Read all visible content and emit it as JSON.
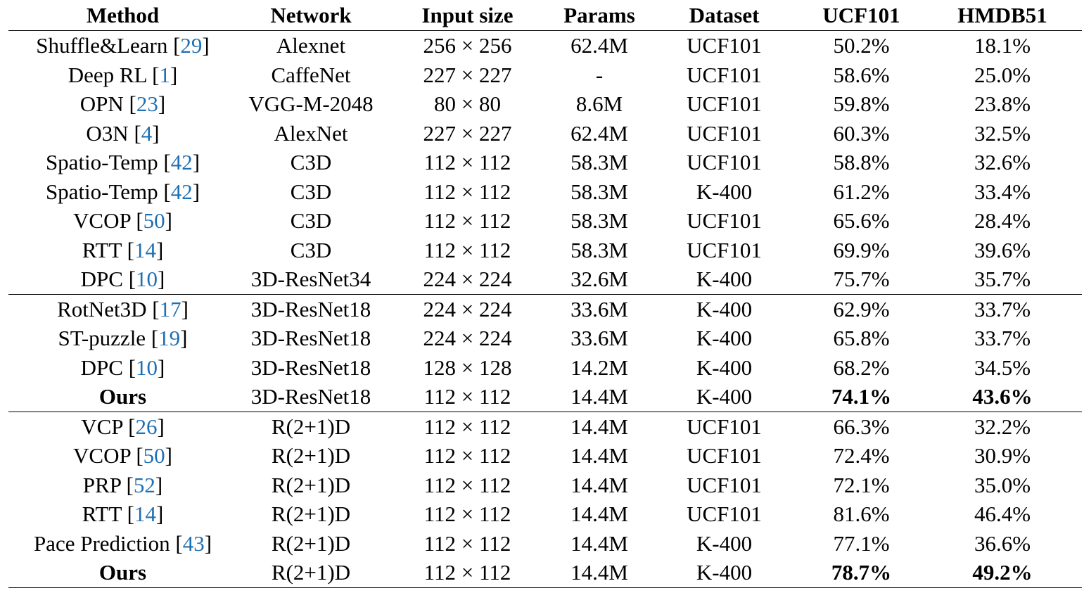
{
  "headers": [
    "Method",
    "Network",
    "Input size",
    "Params",
    "Dataset",
    "UCF101",
    "HMDB51"
  ],
  "groups": [
    [
      {
        "method": "Shuffle&Learn",
        "cite": "29",
        "network": "Alexnet",
        "input": "256 × 256",
        "params": "62.4M",
        "dataset": "UCF101",
        "ucf": "50.2%",
        "hmdb": "18.1%",
        "bold": false
      },
      {
        "method": "Deep RL",
        "cite": "1",
        "network": "CaffeNet",
        "input": "227 × 227",
        "params": "-",
        "dataset": "UCF101",
        "ucf": "58.6%",
        "hmdb": "25.0%",
        "bold": false
      },
      {
        "method": "OPN",
        "cite": "23",
        "network": "VGG-M-2048",
        "input": "80 × 80",
        "params": "8.6M",
        "dataset": "UCF101",
        "ucf": "59.8%",
        "hmdb": "23.8%",
        "bold": false
      },
      {
        "method": "O3N",
        "cite": "4",
        "network": "AlexNet",
        "input": "227 × 227",
        "params": "62.4M",
        "dataset": "UCF101",
        "ucf": "60.3%",
        "hmdb": "32.5%",
        "bold": false
      },
      {
        "method": "Spatio-Temp",
        "cite": "42",
        "network": "C3D",
        "input": "112 × 112",
        "params": "58.3M",
        "dataset": "UCF101",
        "ucf": "58.8%",
        "hmdb": "32.6%",
        "bold": false
      },
      {
        "method": "Spatio-Temp",
        "cite": "42",
        "network": "C3D",
        "input": "112 × 112",
        "params": "58.3M",
        "dataset": "K-400",
        "ucf": "61.2%",
        "hmdb": "33.4%",
        "bold": false
      },
      {
        "method": "VCOP",
        "cite": "50",
        "network": "C3D",
        "input": "112 × 112",
        "params": "58.3M",
        "dataset": "UCF101",
        "ucf": "65.6%",
        "hmdb": "28.4%",
        "bold": false
      },
      {
        "method": "RTT",
        "cite": "14",
        "network": "C3D",
        "input": "112 × 112",
        "params": "58.3M",
        "dataset": "UCF101",
        "ucf": "69.9%",
        "hmdb": "39.6%",
        "bold": false
      },
      {
        "method": "DPC",
        "cite": "10",
        "network": "3D-ResNet34",
        "input": "224 × 224",
        "params": "32.6M",
        "dataset": "K-400",
        "ucf": "75.7%",
        "hmdb": "35.7%",
        "bold": false
      }
    ],
    [
      {
        "method": "RotNet3D",
        "cite": "17",
        "network": "3D-ResNet18",
        "input": "224 × 224",
        "params": "33.6M",
        "dataset": "K-400",
        "ucf": "62.9%",
        "hmdb": "33.7%",
        "bold": false
      },
      {
        "method": "ST-puzzle",
        "cite": "19",
        "network": "3D-ResNet18",
        "input": "224 × 224",
        "params": "33.6M",
        "dataset": "K-400",
        "ucf": "65.8%",
        "hmdb": "33.7%",
        "bold": false
      },
      {
        "method": "DPC",
        "cite": "10",
        "network": "3D-ResNet18",
        "input": "128 × 128",
        "params": "14.2M",
        "dataset": "K-400",
        "ucf": "68.2%",
        "hmdb": "34.5%",
        "bold": false
      },
      {
        "method": "Ours",
        "cite": "",
        "network": "3D-ResNet18",
        "input": "112 × 112",
        "params": "14.4M",
        "dataset": "K-400",
        "ucf": "74.1%",
        "hmdb": "43.6%",
        "bold": true
      }
    ],
    [
      {
        "method": "VCP",
        "cite": "26",
        "network": "R(2+1)D",
        "input": "112 × 112",
        "params": "14.4M",
        "dataset": "UCF101",
        "ucf": "66.3%",
        "hmdb": "32.2%",
        "bold": false
      },
      {
        "method": "VCOP",
        "cite": "50",
        "network": "R(2+1)D",
        "input": "112 × 112",
        "params": "14.4M",
        "dataset": "UCF101",
        "ucf": "72.4%",
        "hmdb": "30.9%",
        "bold": false
      },
      {
        "method": "PRP",
        "cite": "52",
        "network": "R(2+1)D",
        "input": "112 × 112",
        "params": "14.4M",
        "dataset": "UCF101",
        "ucf": "72.1%",
        "hmdb": "35.0%",
        "bold": false
      },
      {
        "method": "RTT",
        "cite": "14",
        "network": "R(2+1)D",
        "input": "112 × 112",
        "params": "14.4M",
        "dataset": "UCF101",
        "ucf": "81.6%",
        "hmdb": "46.4%",
        "bold": false
      },
      {
        "method": "Pace Prediction",
        "cite": "43",
        "network": "R(2+1)D",
        "input": "112 × 112",
        "params": "14.4M",
        "dataset": "K-400",
        "ucf": "77.1%",
        "hmdb": "36.6%",
        "bold": false
      },
      {
        "method": "Ours",
        "cite": "",
        "network": "R(2+1)D",
        "input": "112 × 112",
        "params": "14.4M",
        "dataset": "K-400",
        "ucf": "78.7%",
        "hmdb": "49.2%",
        "bold": true
      }
    ]
  ],
  "colors": {
    "citation": "#1f6fb2",
    "text": "#000000"
  }
}
